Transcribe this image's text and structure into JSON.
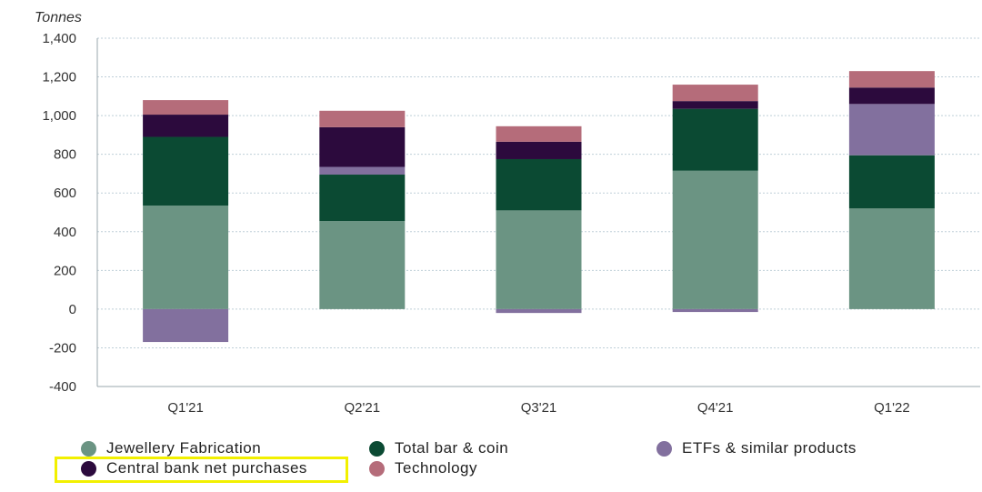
{
  "chart_data": {
    "type": "bar",
    "stacked": true,
    "ylabel": "Tonnes",
    "ylim": [
      -400,
      1400
    ],
    "yticks": [
      -400,
      -200,
      0,
      200,
      400,
      600,
      800,
      1000,
      1200,
      1400
    ],
    "ytick_labels": [
      "-400",
      "-200",
      "0",
      "200",
      "400",
      "600",
      "800",
      "1,000",
      "1,200",
      "1,400"
    ],
    "grid": true,
    "legend_position": "bottom",
    "categories": [
      "Q1'21",
      "Q2'21",
      "Q3'21",
      "Q4'21",
      "Q1'22"
    ],
    "series": [
      {
        "name": "Jewellery Fabrication",
        "color": "#6b9483",
        "values": [
          535,
          455,
          510,
          715,
          520
        ]
      },
      {
        "name": "Total bar & coin",
        "color": "#0b4a33",
        "values": [
          355,
          240,
          265,
          320,
          275
        ]
      },
      {
        "name": "ETFs & similar products",
        "color": "#82709e",
        "values": [
          -170,
          40,
          -20,
          -15,
          265
        ]
      },
      {
        "name": "Central bank net purchases",
        "color": "#2c0a3d",
        "values": [
          115,
          205,
          90,
          40,
          85
        ]
      },
      {
        "name": "Technology",
        "color": "#b56c7a",
        "values": [
          75,
          85,
          80,
          85,
          85
        ]
      }
    ],
    "highlighted_legend_item": "Central bank net purchases"
  }
}
